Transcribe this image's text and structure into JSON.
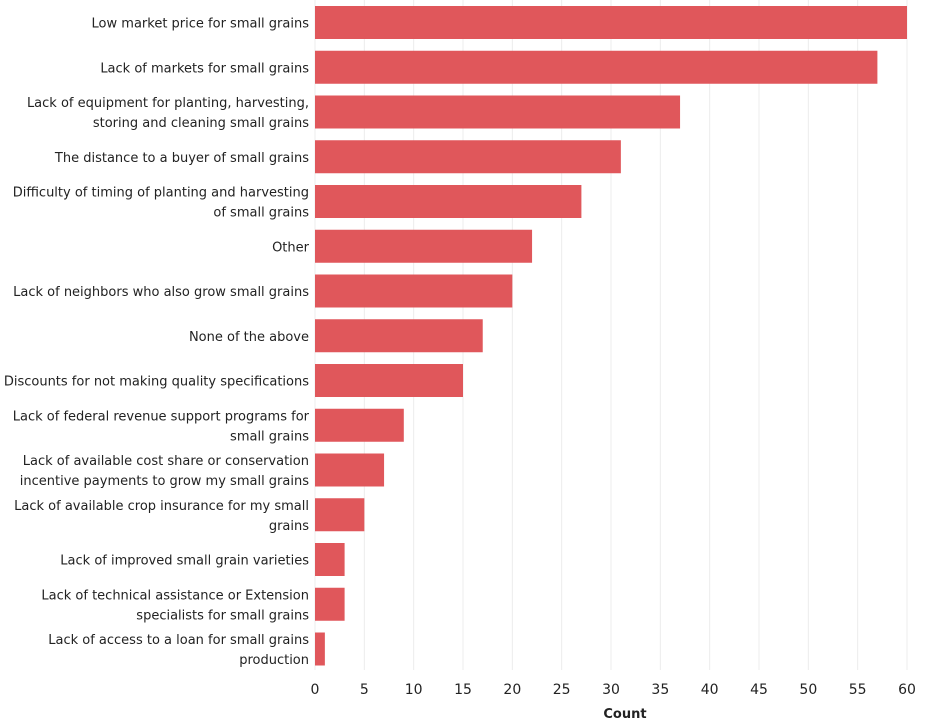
{
  "chart_data": {
    "type": "bar",
    "orientation": "horizontal",
    "categories": [
      "Low market price for small grains",
      "Lack of markets for small grains",
      "Lack of equipment for planting, harvesting, storing and cleaning small grains",
      "The distance to a buyer of small grains",
      "Difficulty of timing of planting and harvesting of small grains",
      "Other",
      "Lack of neighbors who also grow small grains",
      "None of the above",
      "Discounts for not making quality specifications",
      "Lack of federal revenue support programs for small grains",
      "Lack of available cost share or conservation incentive payments to grow my small grains",
      "Lack of available crop insurance for my small grains",
      "Lack of improved small grain varieties",
      "Lack of technical assistance or Extension specialists for small grains",
      "Lack of access to a loan for small grains production"
    ],
    "category_lines": [
      [
        "Low market price for small grains"
      ],
      [
        "Lack of markets for small grains"
      ],
      [
        "Lack of equipment for planting, harvesting,",
        "storing and cleaning small grains"
      ],
      [
        "The distance to a buyer of small grains"
      ],
      [
        "Difficulty of timing of planting and harvesting",
        "of small grains"
      ],
      [
        "Other"
      ],
      [
        "Lack of neighbors who also grow small grains"
      ],
      [
        "None of the above"
      ],
      [
        "Discounts for not making quality specifications"
      ],
      [
        "Lack of federal revenue support programs for",
        "small grains"
      ],
      [
        "Lack of available cost share or conservation",
        "incentive payments to grow my small grains"
      ],
      [
        "Lack of available crop insurance for my small",
        "grains"
      ],
      [
        "Lack of improved small grain varieties"
      ],
      [
        "Lack of technical assistance or Extension",
        "specialists for small grains"
      ],
      [
        "Lack of access to a loan for small grains",
        "production"
      ]
    ],
    "values": [
      60,
      57,
      37,
      31,
      27,
      22,
      20,
      17,
      15,
      9,
      7,
      5,
      3,
      3,
      1
    ],
    "xlabel": "Count",
    "xlim": [
      0,
      60
    ],
    "xticks": [
      0,
      5,
      10,
      15,
      20,
      25,
      30,
      35,
      40,
      45,
      50,
      55,
      60
    ],
    "grid": "vertical",
    "bar_color": "#e0575b"
  }
}
